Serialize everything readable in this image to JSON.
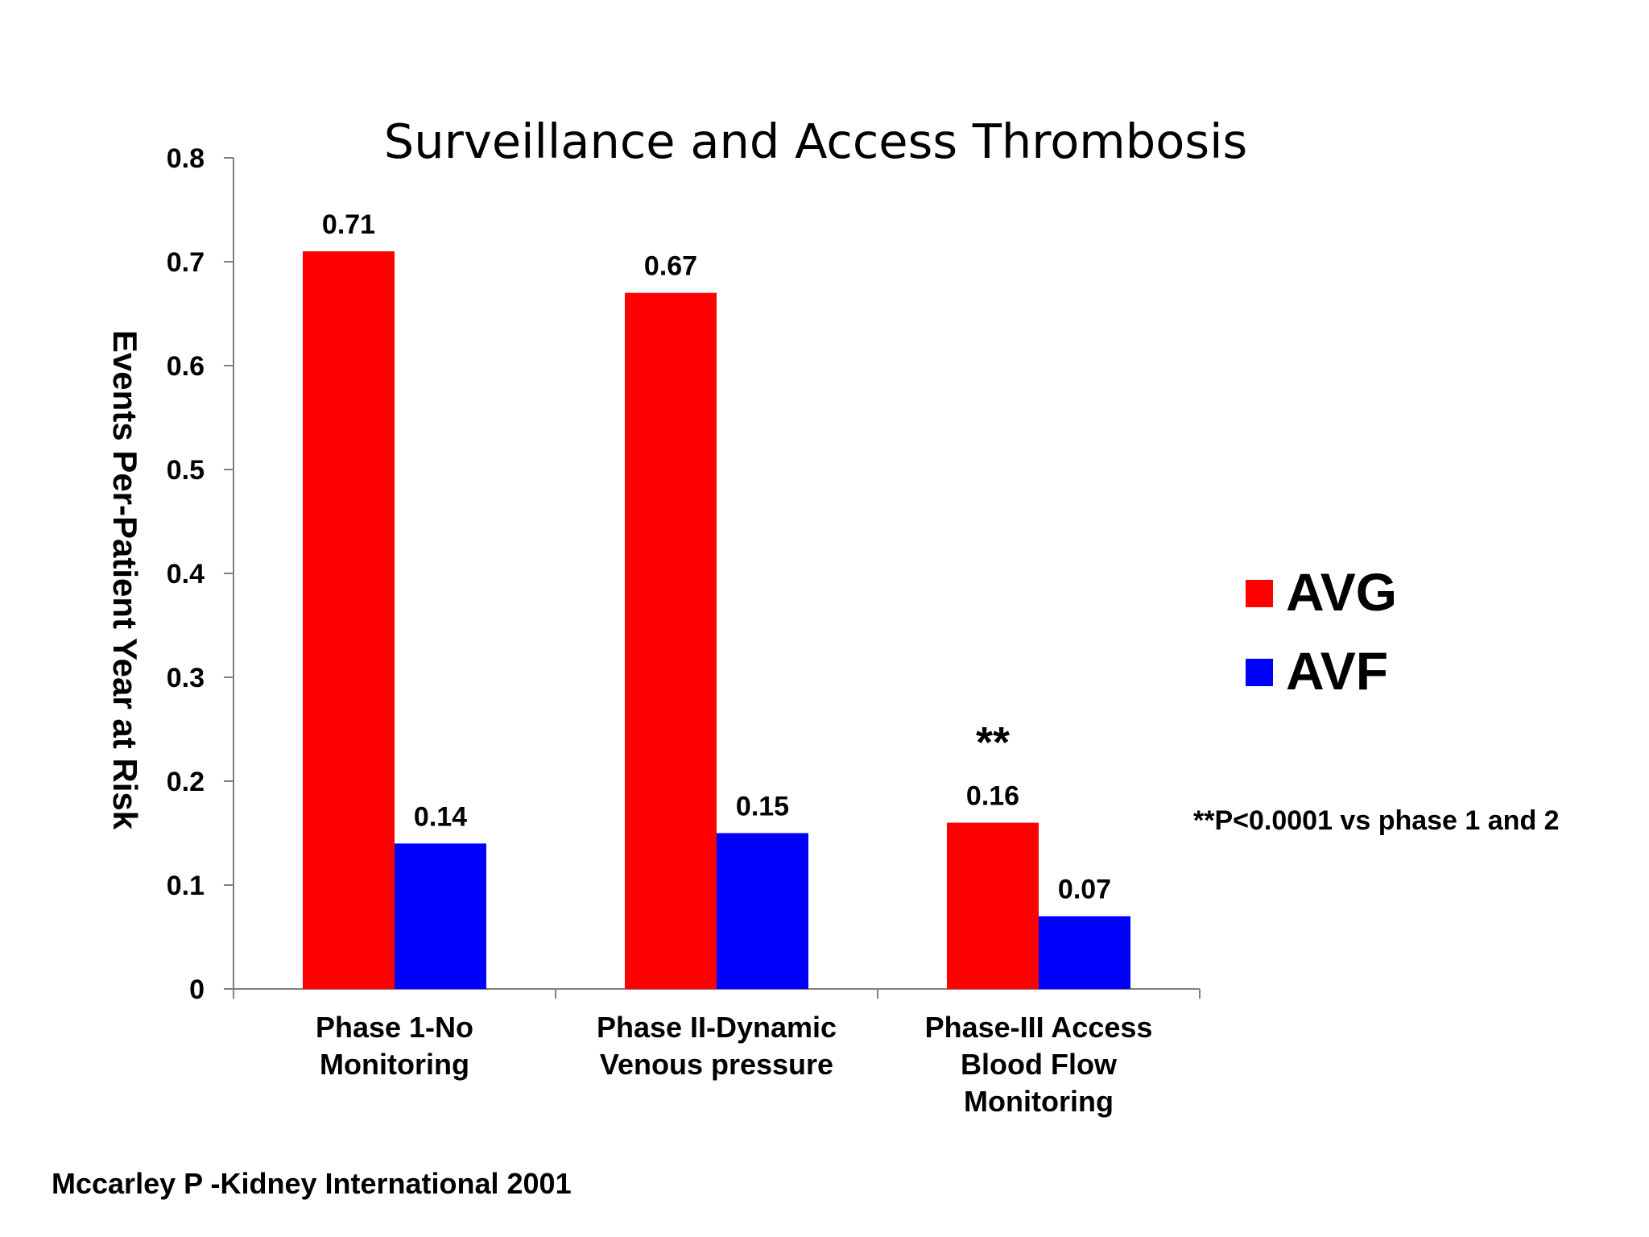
{
  "chart_data": {
    "type": "bar",
    "title": "Surveillance and Access Thrombosis",
    "ylabel": "Events Per-Patient Year at Risk",
    "xlabel": "",
    "ylim": [
      0,
      0.8
    ],
    "yticks": [
      "0",
      "0.1",
      "0.2",
      "0.3",
      "0.4",
      "0.5",
      "0.6",
      "0.7",
      "0.8"
    ],
    "categories": [
      [
        "Phase 1-No",
        "Monitoring"
      ],
      [
        "Phase II-Dynamic",
        "Venous pressure"
      ],
      [
        "Phase-III Access",
        "Blood Flow",
        "Monitoring"
      ]
    ],
    "series": [
      {
        "name": "AVG",
        "color": "#ff0000",
        "values": [
          0.71,
          0.67,
          0.16
        ],
        "labels": [
          "0.71",
          "0.67",
          "0.16"
        ]
      },
      {
        "name": "AVF",
        "color": "#0000ff",
        "values": [
          0.14,
          0.15,
          0.07
        ],
        "labels": [
          "0.14",
          "0.15",
          "0.07"
        ]
      }
    ],
    "grid": false,
    "legend": "right",
    "annotation_marker": "**",
    "footnote": "**P<0.0001 vs phase 1 and 2"
  },
  "source": "Mccarley P -Kidney International 2001"
}
